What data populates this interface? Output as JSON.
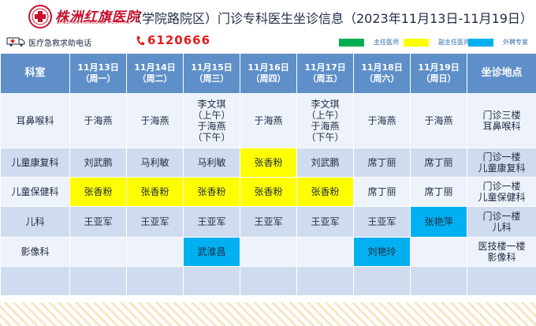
{
  "header": {
    "hospital_name": "株洲红旗医院",
    "hospital_name_en": "ZHUZHOU HONGQIQE HOSPITAL",
    "title": "（学院路院区）门诊专科医生坐诊信息（2023年11月13日-11月19日）"
  },
  "hotline": {
    "label": "医疗急救求助电话",
    "number": "6120666"
  },
  "legend": [
    {
      "label": "主任医师",
      "color": "#00b050"
    },
    {
      "label": "副主任医师",
      "color": "#ffff00"
    },
    {
      "label": "外聘专家",
      "color": "#00b0f0"
    }
  ],
  "table": {
    "headers": {
      "dept": "科室",
      "days": [
        {
          "date": "11月13日",
          "weekday": "（周一）"
        },
        {
          "date": "11月14日",
          "weekday": "（周二）"
        },
        {
          "date": "11月15日",
          "weekday": "（周三）"
        },
        {
          "date": "11月16日",
          "weekday": "（周四）"
        },
        {
          "date": "11月17日",
          "weekday": "（周五）"
        },
        {
          "date": "11月18日",
          "weekday": "（周六）"
        },
        {
          "date": "11月19日",
          "weekday": "（周日）"
        }
      ],
      "location": "坐诊地点"
    },
    "rows": [
      {
        "dept": "耳鼻喉科",
        "cells": [
          {
            "lines": [
              "于海燕"
            ],
            "level": ""
          },
          {
            "lines": [
              "于海燕"
            ],
            "level": ""
          },
          {
            "lines": [
              "李文琪",
              "（上午）",
              "于海燕",
              "（下午）"
            ],
            "level": ""
          },
          {
            "lines": [
              "于海燕"
            ],
            "level": ""
          },
          {
            "lines": [
              "李文琪",
              "（上午）",
              "于海燕",
              "（下午）"
            ],
            "level": ""
          },
          {
            "lines": [
              "于海燕"
            ],
            "level": ""
          },
          {
            "lines": [
              "于海燕"
            ],
            "level": ""
          }
        ],
        "location": [
          "门诊三楼",
          "耳鼻喉科"
        ]
      },
      {
        "dept": "儿童康复科",
        "cells": [
          {
            "lines": [
              "刘武鹏"
            ],
            "level": ""
          },
          {
            "lines": [
              "马利敏"
            ],
            "level": ""
          },
          {
            "lines": [
              "马利敏"
            ],
            "level": ""
          },
          {
            "lines": [
              "张香粉"
            ],
            "level": "副主任医师"
          },
          {
            "lines": [
              "刘武鹏"
            ],
            "level": ""
          },
          {
            "lines": [
              "席丁丽"
            ],
            "level": ""
          },
          {
            "lines": [
              "席丁丽"
            ],
            "level": ""
          }
        ],
        "location": [
          "门诊一楼",
          "儿童康复科"
        ]
      },
      {
        "dept": "儿童保健科",
        "cells": [
          {
            "lines": [
              "张香粉"
            ],
            "level": "副主任医师"
          },
          {
            "lines": [
              "张香粉"
            ],
            "level": "副主任医师"
          },
          {
            "lines": [
              "张香粉"
            ],
            "level": "副主任医师"
          },
          {
            "lines": [
              "张香粉"
            ],
            "level": "副主任医师"
          },
          {
            "lines": [
              "张香粉"
            ],
            "level": "副主任医师"
          },
          {
            "lines": [
              "席丁丽"
            ],
            "level": ""
          },
          {
            "lines": [
              "席丁丽"
            ],
            "level": ""
          }
        ],
        "location": [
          "门诊一楼",
          "儿童保健科"
        ]
      },
      {
        "dept": "儿科",
        "cells": [
          {
            "lines": [
              "王亚军"
            ],
            "level": ""
          },
          {
            "lines": [
              "王亚军"
            ],
            "level": ""
          },
          {
            "lines": [
              "王亚军"
            ],
            "level": ""
          },
          {
            "lines": [
              "王亚军"
            ],
            "level": ""
          },
          {
            "lines": [
              "王亚军"
            ],
            "level": ""
          },
          {
            "lines": [
              "王亚军"
            ],
            "level": ""
          },
          {
            "lines": [
              "张艳萍"
            ],
            "level": "外聘专家"
          }
        ],
        "location": [
          "门诊一楼",
          "儿科"
        ]
      },
      {
        "dept": "影像科",
        "cells": [
          {
            "lines": [],
            "level": ""
          },
          {
            "lines": [],
            "level": ""
          },
          {
            "lines": [
              "武淮昌"
            ],
            "level": "外聘专家"
          },
          {
            "lines": [],
            "level": ""
          },
          {
            "lines": [],
            "level": ""
          },
          {
            "lines": [
              "刘艳玲"
            ],
            "level": "外聘专家"
          },
          {
            "lines": [],
            "level": ""
          }
        ],
        "location": [
          "医技楼一楼",
          "影像科"
        ]
      },
      {
        "dept": "",
        "cells": [
          {
            "lines": [],
            "level": ""
          },
          {
            "lines": [],
            "level": ""
          },
          {
            "lines": [],
            "level": ""
          },
          {
            "lines": [],
            "level": ""
          },
          {
            "lines": [],
            "level": ""
          },
          {
            "lines": [],
            "level": ""
          },
          {
            "lines": [],
            "level": ""
          }
        ],
        "location": []
      }
    ]
  }
}
